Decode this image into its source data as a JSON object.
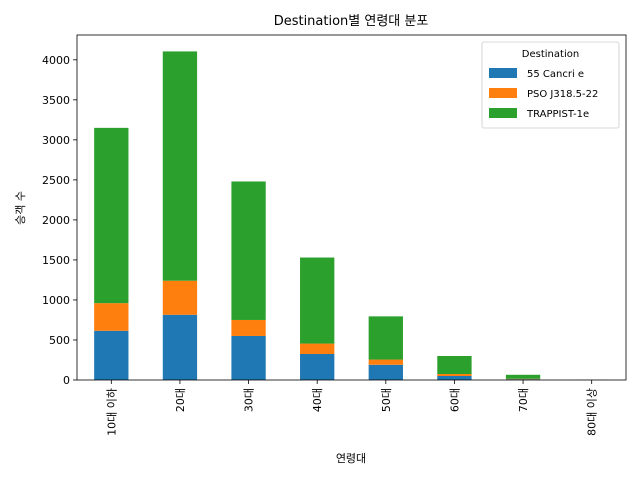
{
  "chart_data": {
    "type": "bar",
    "stacked": true,
    "title": "Destination별 연령대 분포",
    "xlabel": "연령대",
    "ylabel": "승객 수",
    "categories": [
      "10대 이하",
      "20대",
      "30대",
      "40대",
      "50대",
      "60대",
      "70대",
      "80대 이상"
    ],
    "yticks": [
      0,
      500,
      1000,
      1500,
      2000,
      2500,
      3000,
      3500,
      4000
    ],
    "ylim": [
      0,
      4310
    ],
    "legend": {
      "title": "Destination",
      "placement": "top-right"
    },
    "grid": false,
    "series": [
      {
        "name": "55 Cancri e",
        "color": "#1f77b4",
        "values": [
          615,
          815,
          550,
          325,
          190,
          50,
          10,
          0
        ]
      },
      {
        "name": "PSO J318.5-22",
        "color": "#ff7f0e",
        "values": [
          345,
          425,
          200,
          130,
          65,
          25,
          5,
          0
        ]
      },
      {
        "name": "TRAPPIST-1e",
        "color": "#2ca02c",
        "values": [
          2190,
          2865,
          1730,
          1075,
          540,
          225,
          50,
          2
        ]
      }
    ]
  }
}
